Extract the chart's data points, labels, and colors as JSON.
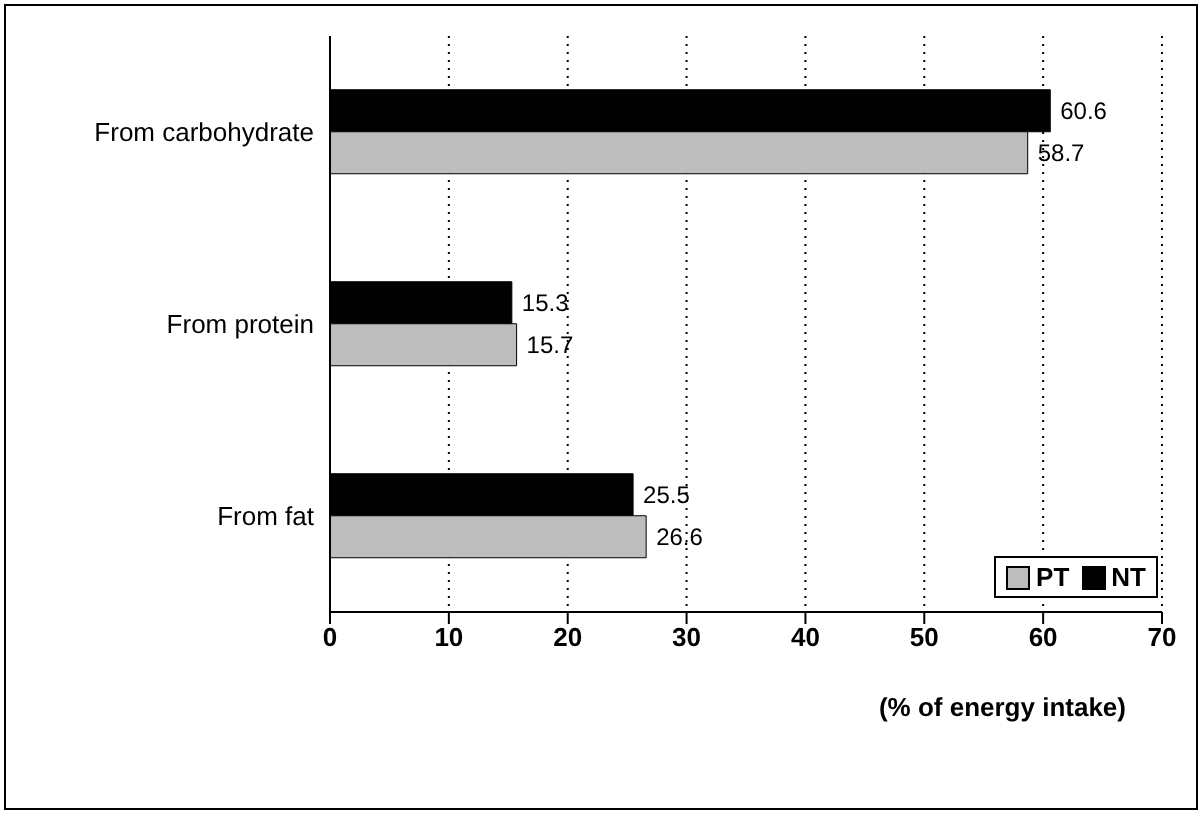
{
  "chart_data": {
    "type": "bar",
    "orientation": "horizontal",
    "xlabel": "(% of energy intake)",
    "categories": [
      "From carbohydrate",
      "From protein",
      "From fat"
    ],
    "series": [
      {
        "name": "PT",
        "color": "#bdbdbd",
        "values": [
          58.7,
          15.7,
          26.6
        ]
      },
      {
        "name": "NT",
        "color": "#000000",
        "values": [
          60.6,
          15.3,
          25.5
        ]
      }
    ],
    "xlim": [
      0,
      70
    ],
    "xticks": [
      0,
      10,
      20,
      30,
      40,
      50,
      60,
      70
    ],
    "grid": "x",
    "legend": "bottom right",
    "data_labels": true
  }
}
